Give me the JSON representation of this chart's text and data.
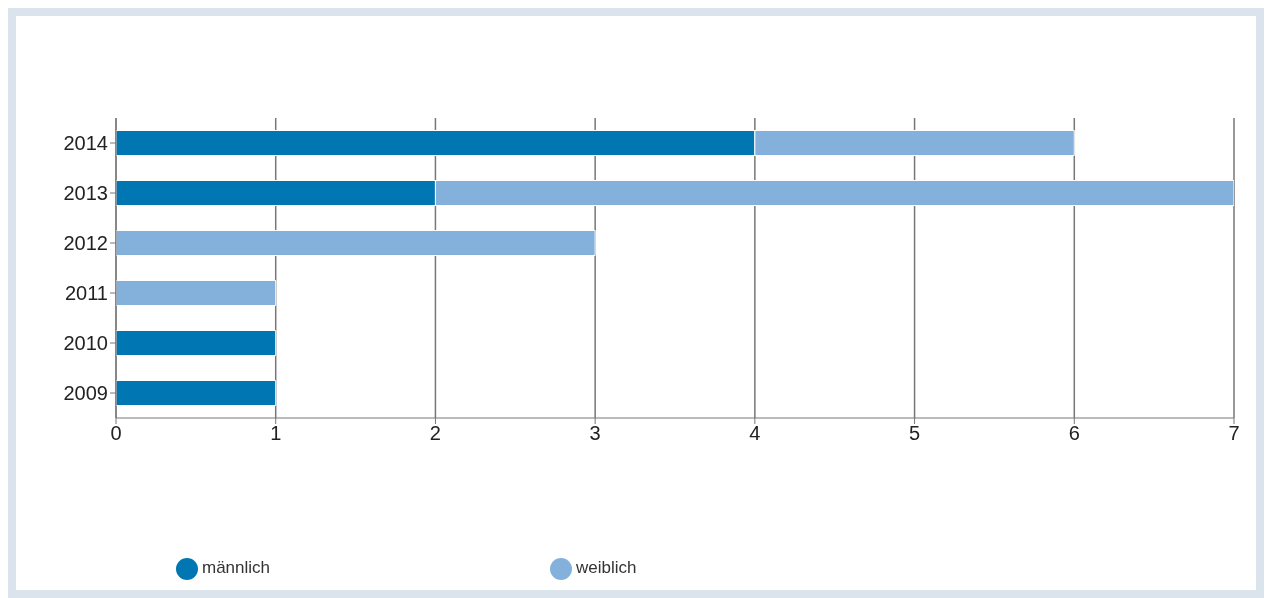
{
  "chart_data": {
    "type": "bar",
    "orientation": "horizontal",
    "stacked": true,
    "categories": [
      "2014",
      "2013",
      "2012",
      "2011",
      "2010",
      "2009"
    ],
    "series": [
      {
        "name": "männlich",
        "color": "#0077b3",
        "values": [
          4,
          2,
          0,
          0,
          1,
          1
        ]
      },
      {
        "name": "weiblich",
        "color": "#84b1dc",
        "values": [
          2,
          5,
          3,
          1,
          0,
          0
        ]
      }
    ],
    "xlim": [
      0,
      7
    ],
    "xticks": [
      0,
      1,
      2,
      3,
      4,
      5,
      6,
      7
    ],
    "grid": "x",
    "legend": "bottom"
  }
}
